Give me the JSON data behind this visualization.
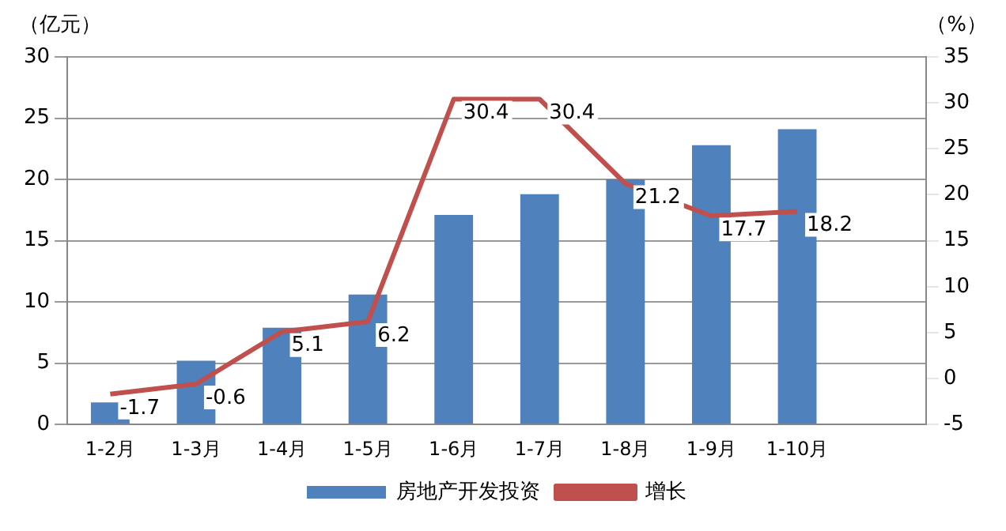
{
  "chart_data": {
    "type": "bar",
    "ylabel": "（亿元）",
    "y2label": "（%）",
    "categories": [
      "1-2月",
      "1-3月",
      "1-4月",
      "1-5月",
      "1-6月",
      "1-7月",
      "1-8月",
      "1-9月",
      "1-10月",
      null
    ],
    "series": [
      {
        "name": "房地产开发投资",
        "color": "#4f81bd",
        "values": [
          1.8,
          5.2,
          7.9,
          10.6,
          17.1,
          18.8,
          20.0,
          22.8,
          24.1,
          null
        ]
      },
      {
        "name": "增长",
        "type": "line",
        "axis": "y2",
        "color": "#c0504d",
        "values": [
          -1.7,
          -0.6,
          5.1,
          6.2,
          30.4,
          30.4,
          21.2,
          17.7,
          18.2,
          null
        ],
        "value_labels": [
          "-1.7",
          "-0.6",
          "5.1",
          "6.2",
          "30.4",
          "30.4",
          "21.2",
          "17.7",
          "18.2",
          null
        ]
      }
    ],
    "ylim": [
      0,
      30
    ],
    "yticks": [
      0,
      5,
      10,
      15,
      20,
      25,
      30
    ],
    "y2lim": [
      -5,
      35
    ],
    "y2ticks": [
      -5,
      0,
      5,
      10,
      15,
      20,
      25,
      30,
      35
    ],
    "grid": "y",
    "legend": "bottom",
    "marker": "none"
  }
}
